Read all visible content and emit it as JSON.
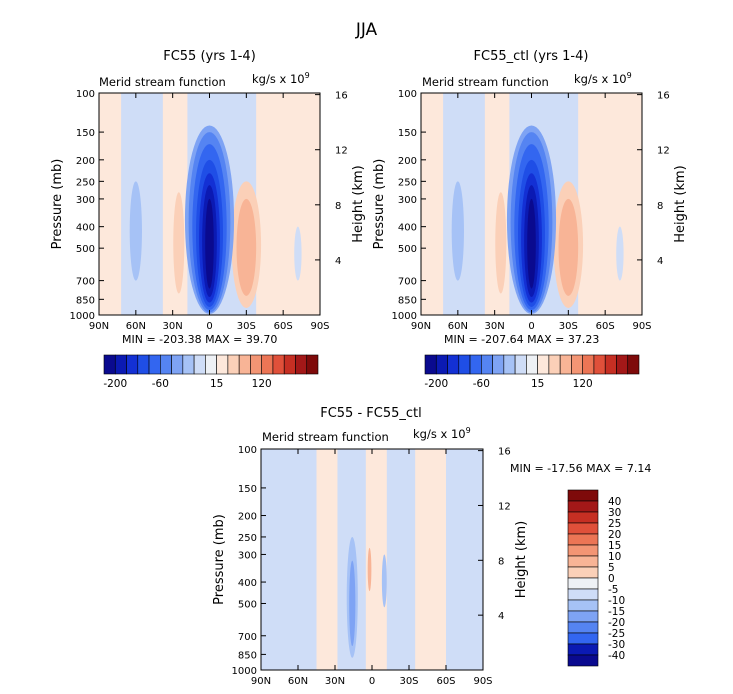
{
  "page": {
    "title": "JJA"
  },
  "palette": {
    "colors": [
      "#0a0a8f",
      "#0b1ab3",
      "#1330d4",
      "#1f4ee6",
      "#3366f0",
      "#5584f2",
      "#7ea3f4",
      "#a6c2f6",
      "#cfddf7",
      "#eef1f5",
      "#fde8db",
      "#fbd0b8",
      "#f8b496",
      "#f39574",
      "#ec7555",
      "#e0503a",
      "#c62f23",
      "#a31818",
      "#7e0a0a"
    ],
    "labels": [
      "-200",
      "-60",
      "15",
      "120"
    ]
  },
  "diff_palette": {
    "colors": [
      "#0a0a8f",
      "#0b1ab3",
      "#1330d4",
      "#1f4ee6",
      "#3366f0",
      "#5584f2",
      "#7ea3f4",
      "#a6c2f6",
      "#cfddf7",
      "#eef1f5",
      "#fde8db",
      "#fbd0b8",
      "#f8b496",
      "#f39574",
      "#ec7555",
      "#e0503a",
      "#c62f23",
      "#a31818",
      "#7e0a0a"
    ],
    "labels": [
      "40",
      "30",
      "25",
      "20",
      "15",
      "10",
      "5",
      "0",
      "-5",
      "-10",
      "-15",
      "-20",
      "-25",
      "-30",
      "-40"
    ]
  },
  "chart_data": [
    {
      "type": "contour",
      "title": "FC55 (yrs 1-4)",
      "subtitle": "Merid stream function",
      "units_text": "kg/s x 10",
      "units_exp": "9",
      "ylabel": "Pressure (mb)",
      "y2label": "Height (km)",
      "xticks": [
        "90N",
        "60N",
        "30N",
        "0",
        "30S",
        "60S",
        "90S"
      ],
      "yticks": [
        "100",
        "150",
        "200",
        "250",
        "300",
        "400",
        "500",
        "700",
        "850",
        "1000"
      ],
      "y2ticks": [
        "16",
        "12",
        "8",
        "4"
      ],
      "stats": "MIN = -203.38   MAX =  39.70",
      "min": -203.38,
      "max": 39.7
    },
    {
      "type": "contour",
      "title": "FC55_ctl (yrs 1-4)",
      "subtitle": "Merid stream function",
      "units_text": "kg/s x 10",
      "units_exp": "9",
      "ylabel": "Pressure (mb)",
      "y2label": "Height (km)",
      "xticks": [
        "90N",
        "60N",
        "30N",
        "0",
        "30S",
        "60S",
        "90S"
      ],
      "yticks": [
        "100",
        "150",
        "200",
        "250",
        "300",
        "400",
        "500",
        "700",
        "850",
        "1000"
      ],
      "y2ticks": [
        "16",
        "12",
        "8",
        "4"
      ],
      "stats": "MIN = -207.64   MAX =  37.23",
      "min": -207.64,
      "max": 37.23
    },
    {
      "type": "contour",
      "title": "FC55 - FC55_ctl",
      "subtitle": "Merid stream function",
      "units_text": "kg/s x 10",
      "units_exp": "9",
      "ylabel": "Pressure (mb)",
      "y2label": "Height (km)",
      "xticks": [
        "90N",
        "60N",
        "30N",
        "0",
        "30S",
        "60S",
        "90S"
      ],
      "yticks": [
        "100",
        "150",
        "200",
        "250",
        "300",
        "400",
        "500",
        "700",
        "850",
        "1000"
      ],
      "y2ticks": [
        "16",
        "12",
        "8",
        "4"
      ],
      "stats": "MIN = -17.56   MAX =   7.14",
      "min": -17.56,
      "max": 7.14
    }
  ]
}
